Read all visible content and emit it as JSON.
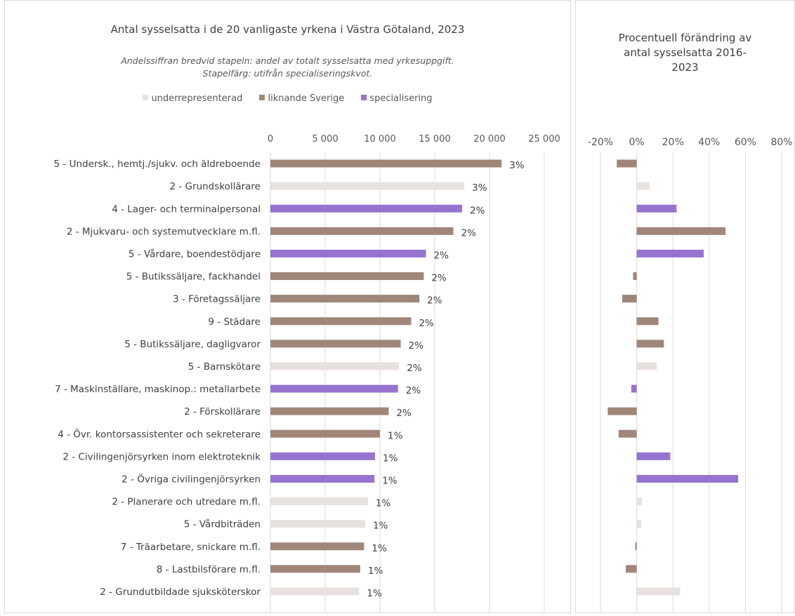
{
  "chart_data": [
    {
      "type": "bar",
      "orientation": "horizontal",
      "title": "Antal sysselsatta i de 20 vanligaste yrkena i Västra Götaland, 2023",
      "subtitle_lines": [
        "Andelssiffran bredvid stapeln: andel av totalt sysselsatta med yrkesuppgift.",
        "Stapelfärg: utifrån specialiseringskvot."
      ],
      "legend": [
        {
          "key": "under",
          "label": "underrepresenterad",
          "color": "#e7e1df"
        },
        {
          "key": "like",
          "label": "liknande Sverige",
          "color": "#a08679"
        },
        {
          "key": "spec",
          "label": "specialisering",
          "color": "#9673d0"
        }
      ],
      "legend_position": "top",
      "xlim": [
        0,
        25000
      ],
      "xticks": [
        0,
        5000,
        10000,
        15000,
        20000,
        25000
      ],
      "xtick_labels": [
        "0",
        "5 000",
        "10 000",
        "15 000",
        "20 000",
        "25 000"
      ],
      "grid": true,
      "categories": [
        "5 -  Undersk., hemtj./sjukv. och äldreboende",
        "2 -  Grundskollärare",
        "4 -  Lager- och terminalpersonal",
        "2 -  Mjukvaru- och systemutvecklare m.fl.",
        "5 -  Vårdare, boendestödjare",
        "5 -  Butikssäljare, fackhandel",
        "3 -  Företagssäljare",
        "9 -  Städare",
        "5 -  Butikssäljare, dagligvaror",
        "5 -  Barnskötare",
        "7 -  Maskinställare, maskinop.: metallarbete",
        "2 -  Förskollärare",
        "4 -  Övr. kontorsassistenter och sekreterare",
        "2 -  Civilingenjörsyrken inom elektroteknik",
        "2 -  Övriga civilingenjörsyrken",
        "2 -  Planerare och utredare m.fl.",
        "5 -  Vårdbiträden",
        "7 -  Träarbetare, snickare m.fl.",
        "8 -  Lastbilsförare m.fl.",
        "2 -  Grundutbildade sjuksköterskor"
      ],
      "values": [
        21100,
        17700,
        17500,
        16700,
        14200,
        14000,
        13600,
        12850,
        11900,
        11750,
        11650,
        10800,
        10000,
        9550,
        9500,
        8900,
        8650,
        8550,
        8200,
        8100
      ],
      "data_labels": [
        "3%",
        "3%",
        "2%",
        "2%",
        "2%",
        "2%",
        "2%",
        "2%",
        "2%",
        "2%",
        "2%",
        "2%",
        "1%",
        "1%",
        "1%",
        "1%",
        "1%",
        "1%",
        "1%",
        "1%"
      ],
      "color_keys": [
        "like",
        "under",
        "spec",
        "like",
        "spec",
        "like",
        "like",
        "like",
        "like",
        "under",
        "spec",
        "like",
        "like",
        "spec",
        "spec",
        "under",
        "under",
        "like",
        "like",
        "under"
      ]
    },
    {
      "type": "bar",
      "orientation": "horizontal",
      "title": "Procentuell förändring av antal sysselsatta 2016-2023",
      "title_lines": [
        "Procentuell förändring av",
        "antal sysselsatta 2016-",
        "2023"
      ],
      "xlim": [
        -20,
        80
      ],
      "xticks": [
        -20,
        0,
        20,
        40,
        60,
        80
      ],
      "xtick_labels": [
        "-20%",
        "0%",
        "20%",
        "40%",
        "60%",
        "80%"
      ],
      "grid": true,
      "values": [
        -11,
        7,
        22,
        49,
        37,
        -2,
        -8,
        12,
        15,
        11,
        -3,
        -16,
        -10,
        18.5,
        56,
        3,
        2.5,
        -0.8,
        -6,
        24
      ],
      "color_keys": [
        "like",
        "under",
        "spec",
        "like",
        "spec",
        "like",
        "like",
        "like",
        "like",
        "under",
        "spec",
        "like",
        "like",
        "spec",
        "spec",
        "under",
        "under",
        "like",
        "like",
        "under"
      ]
    }
  ]
}
